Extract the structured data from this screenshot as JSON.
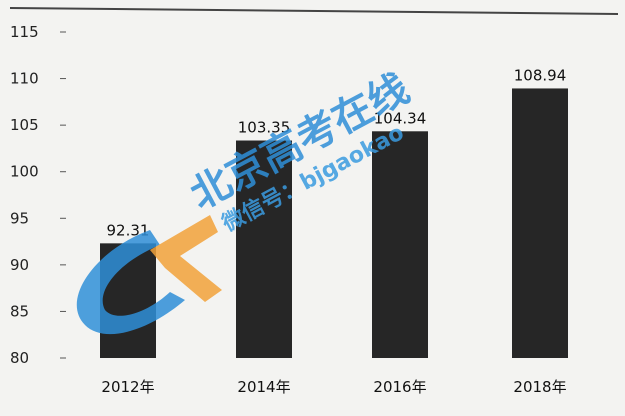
{
  "chart_data": {
    "type": "bar",
    "categories": [
      "2012年",
      "2014年",
      "2016年",
      "2018年"
    ],
    "values": [
      92.31,
      103.35,
      104.34,
      108.94
    ],
    "data_labels": [
      "92.31",
      "103.35",
      "104.34",
      "108.94"
    ],
    "yticks": [
      "115",
      "110",
      "105",
      "100",
      "95",
      "90",
      "85",
      "80"
    ],
    "ylim": [
      80,
      115
    ],
    "title": "",
    "xlabel": "",
    "ylabel": "",
    "grid": false,
    "bar_color": "#262626"
  },
  "watermark": {
    "text": "北京高考在线",
    "sub": "微信号：bjgaokao",
    "color": "#2f8fd8",
    "accent": "#f2a23a"
  }
}
